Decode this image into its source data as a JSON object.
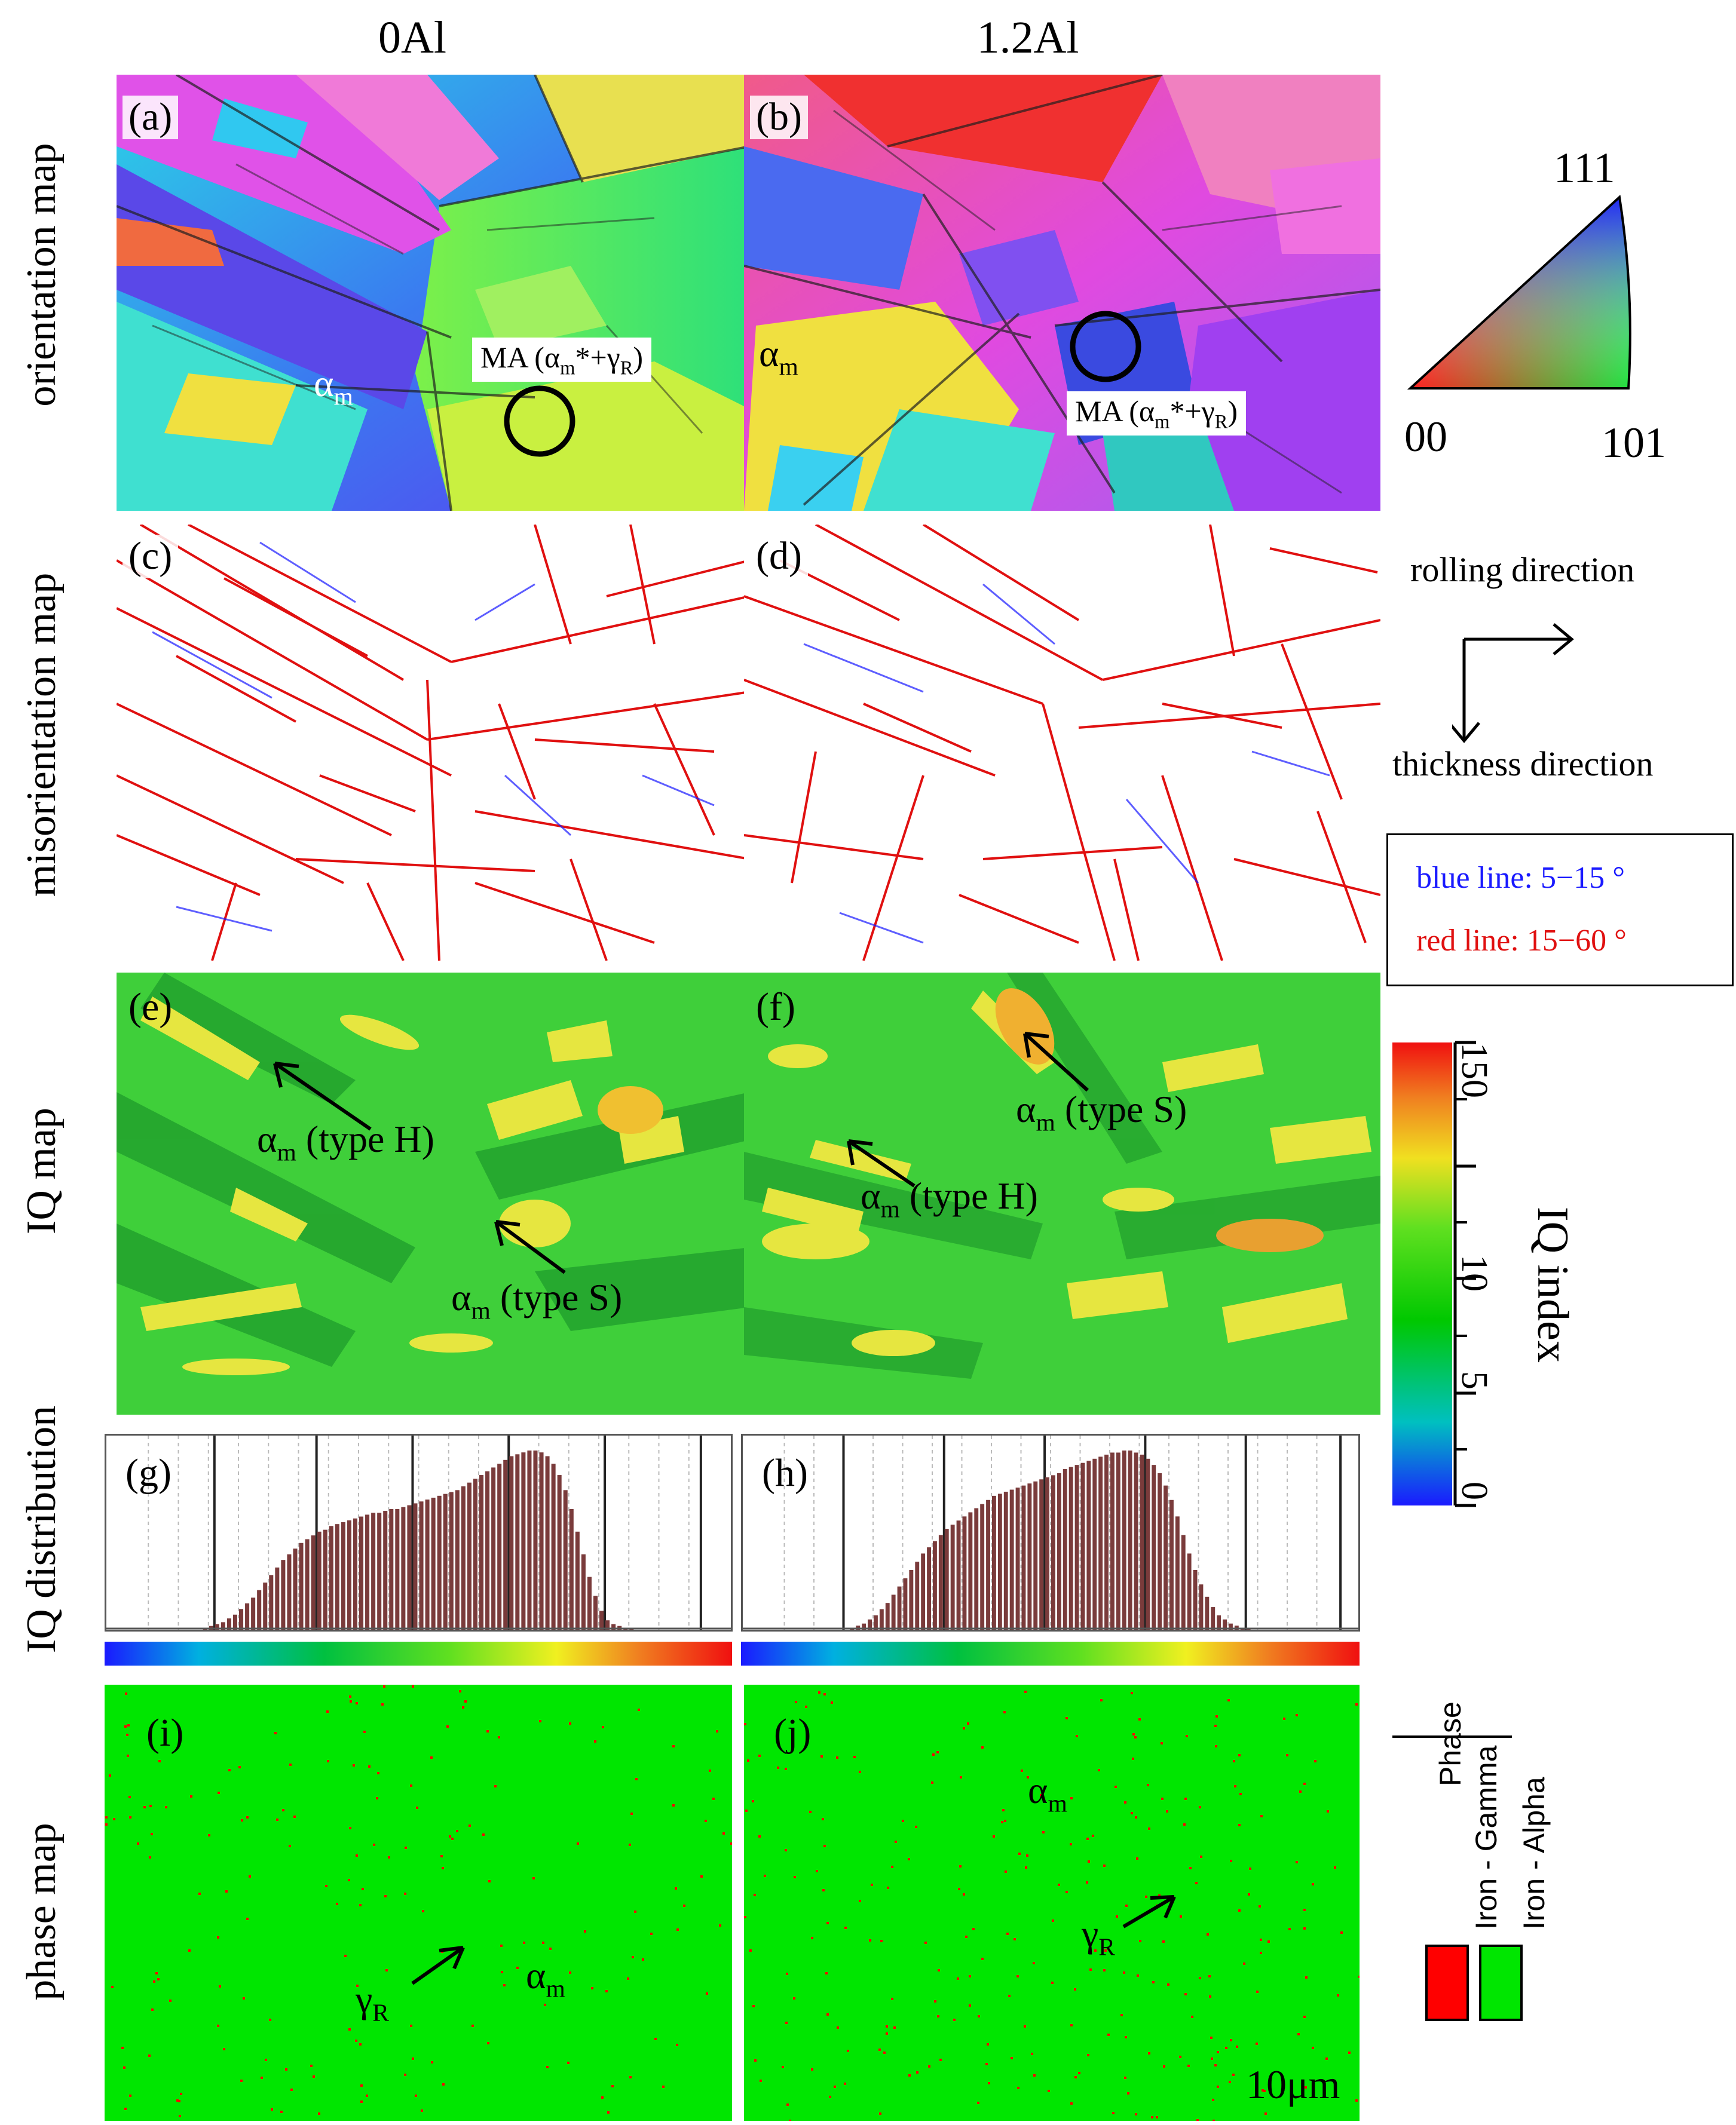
{
  "columns": {
    "left": "0Al",
    "right": "1.2Al"
  },
  "rows": {
    "orientation": "orientation map",
    "misorientation": "misorientation map",
    "iq": "IQ map",
    "iq_dist": "IQ distribution",
    "phase": "phase map"
  },
  "panels": {
    "a": "(a)",
    "b": "(b)",
    "c": "(c)",
    "d": "(d)",
    "e": "(e)",
    "f": "(f)",
    "g": "(g)",
    "h": "(h)",
    "i": "(i)",
    "j": "(j)"
  },
  "annotations": {
    "alpha_m": "αm",
    "ma_a": "MA (αm*+γR)",
    "ma_b": "MA (αm*+γR)",
    "type_h": "αm (type H)",
    "type_s": "αm (type S)",
    "gamma_r": "γR",
    "scale_bar": "10μm"
  },
  "ipf_triangle": {
    "corner_top": "111",
    "corner_left": "00",
    "corner_right": "101"
  },
  "directions": {
    "rolling": "rolling direction",
    "thickness": "thickness direction"
  },
  "misorientation_legend": {
    "blue": "blue line: 5−15 °",
    "red": "red line: 15−60 °",
    "blue_color": "#1a1aff",
    "red_color": "#e01010"
  },
  "iq_colorbar": {
    "title": "IQ index",
    "ticks": [
      "0",
      "5",
      "10",
      "150"
    ]
  },
  "phase_legend": {
    "title": "Phase",
    "gamma": "Iron - Gamma",
    "alpha": "Iron - Alpha",
    "gamma_color": "#ff0000",
    "alpha_color": "#00e600"
  },
  "chart_data": [
    {
      "type": "bar",
      "panel": "(g)",
      "bins": 100,
      "values": [
        0,
        0,
        0,
        0,
        0,
        0,
        0,
        0,
        0,
        0,
        0,
        0,
        0,
        0,
        1,
        2,
        3,
        4,
        6,
        8,
        11,
        14,
        17,
        21,
        25,
        29,
        33,
        37,
        40,
        43,
        46,
        48,
        50,
        52,
        53,
        55,
        56,
        57,
        58,
        59,
        60,
        61,
        62,
        62,
        63,
        64,
        64,
        65,
        66,
        67,
        68,
        69,
        70,
        71,
        72,
        73,
        74,
        76,
        78,
        80,
        82,
        84,
        86,
        88,
        90,
        92,
        93,
        94,
        95,
        95,
        94,
        92,
        88,
        82,
        74,
        64,
        52,
        40,
        28,
        18,
        10,
        5,
        3,
        2,
        1,
        1,
        0,
        0,
        0,
        0,
        0,
        0,
        0,
        0,
        0,
        0,
        0,
        0,
        0,
        0
      ]
    },
    {
      "type": "bar",
      "panel": "(h)",
      "bins": 100,
      "values": [
        0,
        0,
        0,
        0,
        0,
        0,
        0,
        0,
        0,
        0,
        0,
        0,
        0,
        0,
        0,
        0,
        1,
        2,
        3,
        5,
        7,
        10,
        13,
        17,
        21,
        25,
        29,
        33,
        37,
        40,
        43,
        46,
        49,
        51,
        53,
        55,
        57,
        59,
        61,
        63,
        65,
        66,
        67,
        68,
        69,
        70,
        71,
        72,
        73,
        74,
        75,
        76,
        78,
        79,
        80,
        81,
        82,
        83,
        84,
        85,
        86,
        86,
        87,
        87,
        86,
        85,
        83,
        80,
        76,
        70,
        63,
        55,
        46,
        37,
        29,
        22,
        16,
        11,
        7,
        5,
        3,
        2,
        1,
        1,
        0,
        0,
        0,
        0,
        0,
        0,
        0,
        0,
        0,
        0,
        0,
        0,
        0,
        0,
        0,
        0
      ]
    }
  ]
}
